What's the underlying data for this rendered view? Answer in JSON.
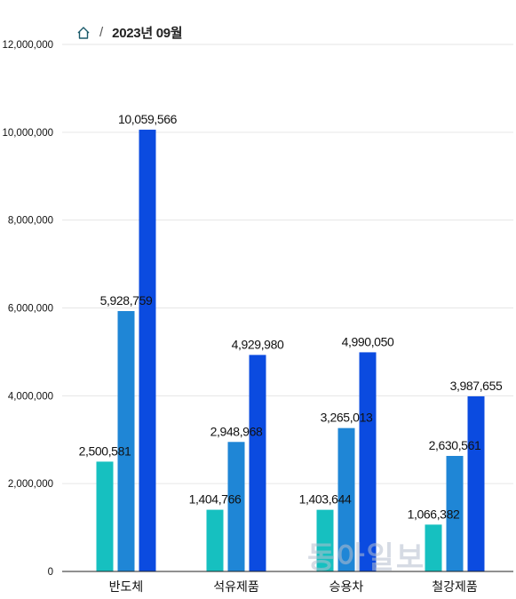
{
  "breadcrumb": {
    "home_icon": "home-icon",
    "separator": "/",
    "current": "2023년 09월"
  },
  "watermark": "동아일보",
  "colors": {
    "series1": "#16c0c0",
    "series2": "#1f86d6",
    "series3": "#0b4be0",
    "grid": "#e6e6e6",
    "axis": "#222222",
    "text": "#111111"
  },
  "chart_data": {
    "type": "bar",
    "categories": [
      "반도체",
      "석유제품",
      "승용차",
      "철강제품"
    ],
    "series": [
      {
        "values": [
          2500581,
          1404766,
          1403644,
          1066382
        ]
      },
      {
        "values": [
          5928759,
          2948968,
          3265013,
          2630561
        ]
      },
      {
        "values": [
          10059566,
          4929980,
          4990050,
          3987655
        ]
      }
    ],
    "value_labels": [
      [
        "2,500,581",
        "1,404,766",
        "1,403,644",
        "1,066,382"
      ],
      [
        "5,928,759",
        "2,948,968",
        "3,265,013",
        "2,630,561"
      ],
      [
        "10,059,566",
        "4,929,980",
        "4,990,050",
        "3,987,655"
      ]
    ],
    "yticks": [
      0,
      2000000,
      4000000,
      6000000,
      8000000,
      10000000,
      12000000
    ],
    "ytick_labels": [
      "0",
      "2,000,000",
      "4,000,000",
      "6,000,000",
      "8,000,000",
      "10,000,000",
      "12,000,000"
    ],
    "ylim": [
      0,
      12000000
    ],
    "grid": true,
    "legend": "none"
  }
}
